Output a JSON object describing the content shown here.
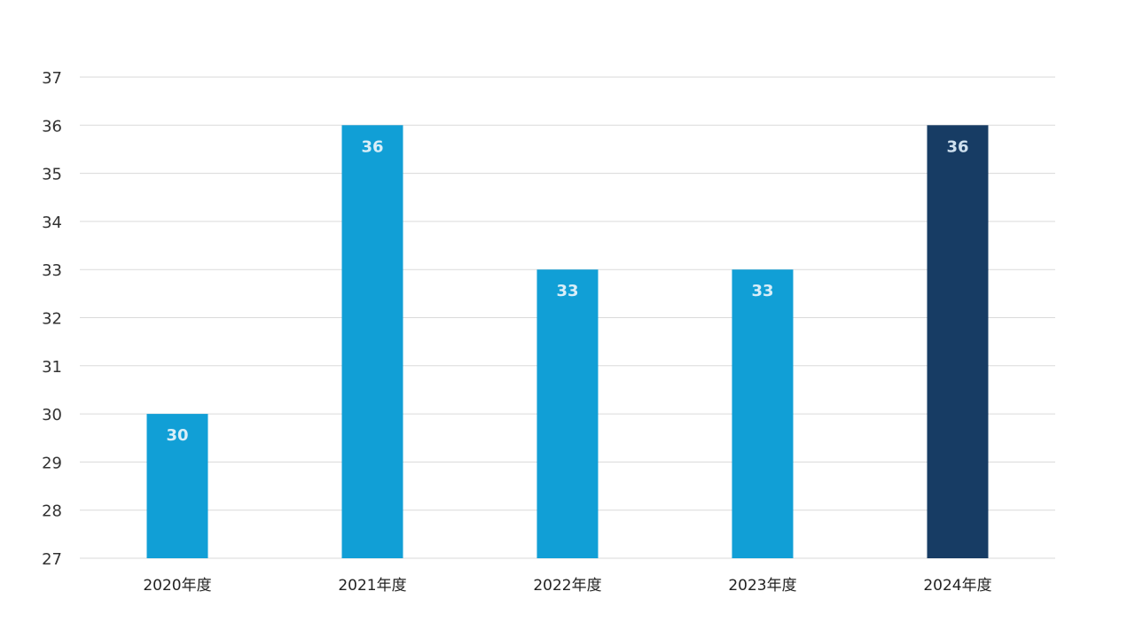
{
  "chart_data": {
    "type": "bar",
    "title": "",
    "xlabel": "",
    "ylabel": "",
    "categories": [
      "2020年度",
      "2021年度",
      "2022年度",
      "2023年度",
      "2024年度"
    ],
    "values": [
      30,
      36,
      33,
      33,
      36
    ],
    "data_labels": [
      "30",
      "36",
      "33",
      "33",
      "36"
    ],
    "ylim": [
      27,
      37
    ],
    "yticks": [
      "27",
      "28",
      "29",
      "30",
      "31",
      "32",
      "33",
      "34",
      "35",
      "36",
      "37"
    ],
    "grid": true,
    "legend": "none",
    "colors": {
      "bar": "#119fd6",
      "highlight_bar": "#173c64",
      "grid": "#dadada",
      "label_text": "#d9eef8"
    },
    "highlight_index": 4
  }
}
